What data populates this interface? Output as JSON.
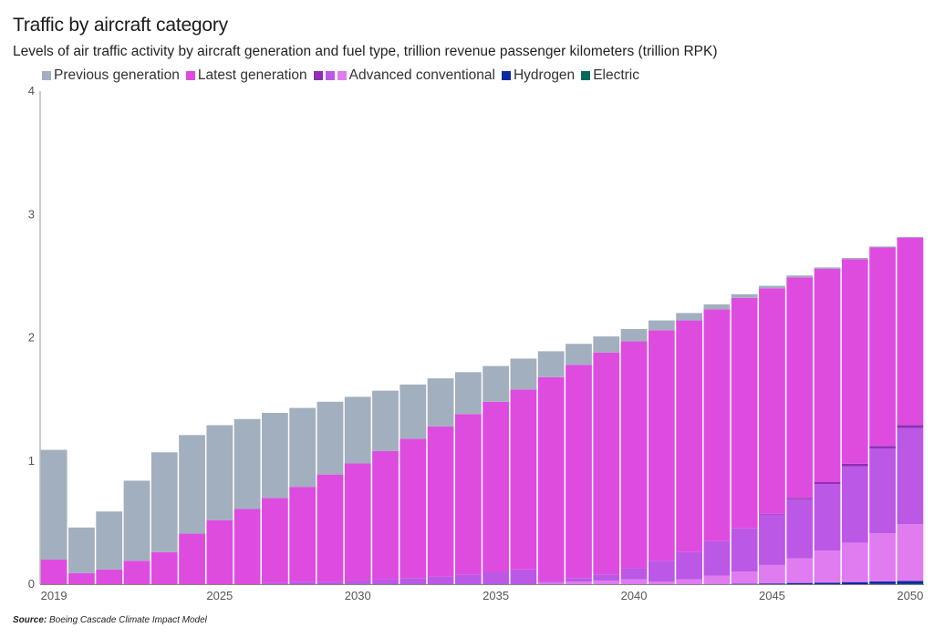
{
  "chart_data": {
    "type": "bar",
    "stacked": true,
    "title": "Traffic by aircraft category",
    "subtitle": "Levels of air traffic activity by aircraft generation and fuel type, trillion revenue passenger kilometers (trillion RPK)",
    "ylim": [
      0,
      4
    ],
    "yticks": [
      "0",
      "1",
      "2",
      "3",
      "4"
    ],
    "legend_placement": "top-left",
    "x": [
      2019,
      2020,
      2021,
      2022,
      2023,
      2024,
      2025,
      2026,
      2027,
      2028,
      2029,
      2030,
      2031,
      2032,
      2033,
      2034,
      2035,
      2036,
      2037,
      2038,
      2039,
      2040,
      2041,
      2042,
      2043,
      2044,
      2045,
      2046,
      2047,
      2048,
      2049,
      2050
    ],
    "xticks": [
      "2019",
      "2025",
      "2030",
      "2035",
      "2040",
      "2045",
      "2050"
    ],
    "series": [
      {
        "name": "Electric",
        "color": "#00695c",
        "values": [
          0,
          0,
          0,
          0,
          0,
          0,
          0,
          0,
          0,
          0,
          0,
          0,
          0,
          0,
          0,
          0,
          0,
          0,
          0,
          0,
          0,
          0,
          0,
          0,
          0,
          0,
          0,
          0,
          0,
          0,
          0.002,
          0.004
        ]
      },
      {
        "name": "Hydrogen",
        "color": "#0d2a9e",
        "values": [
          0,
          0,
          0,
          0,
          0,
          0,
          0,
          0,
          0,
          0,
          0,
          0,
          0,
          0,
          0,
          0,
          0,
          0,
          0,
          0,
          0,
          0,
          0,
          0,
          0,
          0.003,
          0.006,
          0.01,
          0.013,
          0.017,
          0.02,
          0.023
        ]
      },
      {
        "name": "Advanced conventional (light)",
        "color": "#e07cf0",
        "values": [
          0,
          0,
          0,
          0,
          0,
          0,
          0,
          0,
          0,
          0,
          0,
          0,
          0,
          0,
          0,
          0,
          0,
          0,
          0.01,
          0.02,
          0.03,
          0.04,
          0.02,
          0.04,
          0.07,
          0.1,
          0.15,
          0.2,
          0.26,
          0.32,
          0.39,
          0.46
        ]
      },
      {
        "name": "Advanced conventional (medium)",
        "color": "#bb58e6",
        "values": [
          0,
          0,
          0,
          0,
          0,
          0,
          0,
          0,
          0.01,
          0.02,
          0.02,
          0.03,
          0.04,
          0.05,
          0.06,
          0.08,
          0.1,
          0.12,
          0.01,
          0.03,
          0.05,
          0.09,
          0.17,
          0.22,
          0.28,
          0.35,
          0.41,
          0.48,
          0.54,
          0.62,
          0.69,
          0.78
        ]
      },
      {
        "name": "Advanced conventional (dark)",
        "color": "#8f2fb3",
        "values": [
          0,
          0,
          0,
          0,
          0,
          0,
          0,
          0,
          0,
          0,
          0,
          0,
          0,
          0,
          0,
          0,
          0,
          0,
          0,
          0,
          0,
          0,
          0,
          0,
          0,
          0,
          0.005,
          0.01,
          0.015,
          0.02,
          0.02,
          0.025
        ]
      },
      {
        "name": "Latest generation",
        "color": "#de4cdf",
        "values": [
          0.2,
          0.09,
          0.12,
          0.19,
          0.26,
          0.41,
          0.52,
          0.61,
          0.69,
          0.77,
          0.87,
          0.95,
          1.04,
          1.13,
          1.22,
          1.3,
          1.38,
          1.46,
          1.66,
          1.73,
          1.8,
          1.84,
          1.87,
          1.88,
          1.88,
          1.87,
          1.83,
          1.79,
          1.73,
          1.66,
          1.61,
          1.52
        ]
      },
      {
        "name": "Previous generation",
        "color": "#a2afbf",
        "values": [
          0.89,
          0.37,
          0.47,
          0.65,
          0.81,
          0.8,
          0.77,
          0.73,
          0.69,
          0.64,
          0.59,
          0.54,
          0.49,
          0.44,
          0.39,
          0.34,
          0.29,
          0.25,
          0.21,
          0.17,
          0.13,
          0.1,
          0.08,
          0.06,
          0.04,
          0.03,
          0.02,
          0.015,
          0.012,
          0.01,
          0.008,
          0.006
        ]
      }
    ]
  },
  "legend": [
    {
      "label": "Previous generation",
      "colors": [
        "#a2afbf"
      ]
    },
    {
      "label": "Latest generation",
      "colors": [
        "#de4cdf"
      ]
    },
    {
      "label": "Advanced conventional",
      "colors": [
        "#8f2fb3",
        "#bb58e6",
        "#e07cf0"
      ]
    },
    {
      "label": "Hydrogen",
      "colors": [
        "#0d2a9e"
      ]
    },
    {
      "label": "Electric",
      "colors": [
        "#00695c"
      ]
    }
  ],
  "source": {
    "label": "Source:",
    "text": "Boeing Cascade Climate Impact Model"
  }
}
